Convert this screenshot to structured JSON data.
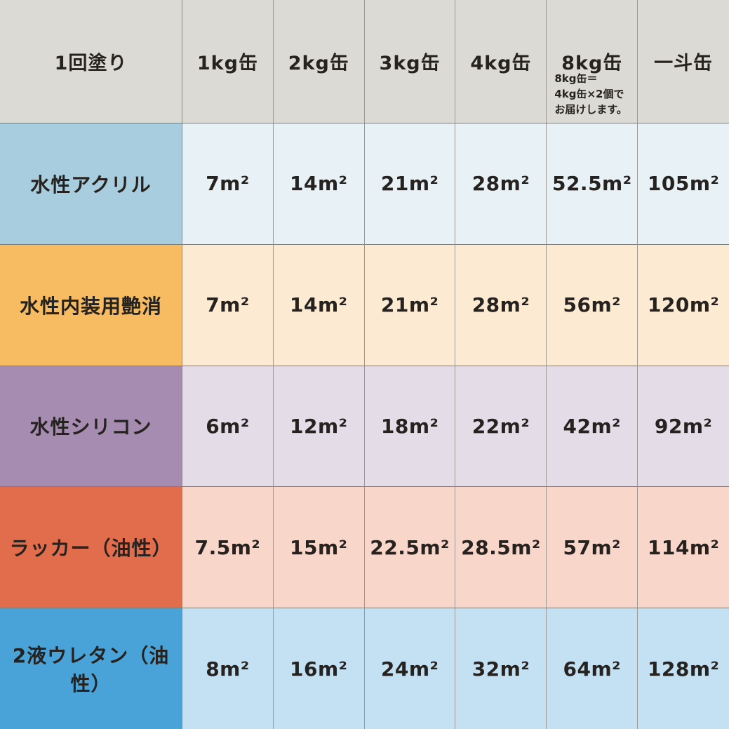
{
  "table": {
    "header": {
      "row_label": "1回塗り",
      "columns": [
        "1kg缶",
        "2kg缶",
        "3kg缶",
        "4kg缶",
        "8kg缶",
        "一斗缶"
      ],
      "note": "8kg缶＝\n4kg缶×2個で\nお届けします。"
    },
    "rows": [
      {
        "label": "水性アクリル",
        "label_color": "#a8cdde",
        "cell_color": "#e8f1f6",
        "values": [
          "7m²",
          "14m²",
          "21m²",
          "28m²",
          "52.5m²",
          "105m²"
        ]
      },
      {
        "label": "水性内装用艶消",
        "label_color": "#f7bb61",
        "cell_color": "#fcebd2",
        "values": [
          "7m²",
          "14m²",
          "21m²",
          "28m²",
          "56m²",
          "120m²"
        ]
      },
      {
        "label": "水性シリコン",
        "label_color": "#a68cb0",
        "cell_color": "#e4dde8",
        "values": [
          "6m²",
          "12m²",
          "18m²",
          "22m²",
          "42m²",
          "92m²"
        ]
      },
      {
        "label": "ラッカー（油性）",
        "label_color": "#e26d4c",
        "cell_color": "#f8d6ca",
        "values": [
          "7.5m²",
          "15m²",
          "22.5m²",
          "28.5m²",
          "57m²",
          "114m²"
        ]
      },
      {
        "label": "2液ウレタン（油性）",
        "label_color": "#49a3d9",
        "cell_color": "#c3e1f2",
        "values": [
          "8m²",
          "16m²",
          "24m²",
          "32m²",
          "64m²",
          "128m²"
        ]
      }
    ],
    "colors": {
      "header_bg": "#dcdad5",
      "text": "#262220",
      "grid_vertical": "#9d9a95",
      "grid_horizontal": "#7d7d7b"
    }
  },
  "chart_data": {
    "type": "table",
    "title": "1回塗り",
    "columns": [
      "1kg缶",
      "2kg缶",
      "3kg缶",
      "4kg缶",
      "8kg缶",
      "一斗缶"
    ],
    "unit": "m²",
    "rows": [
      {
        "name": "水性アクリル",
        "values": [
          7,
          14,
          21,
          28,
          52.5,
          105
        ]
      },
      {
        "name": "水性内装用艶消",
        "values": [
          7,
          14,
          21,
          28,
          56,
          120
        ]
      },
      {
        "name": "水性シリコン",
        "values": [
          6,
          12,
          18,
          22,
          42,
          92
        ]
      },
      {
        "name": "ラッカー（油性）",
        "values": [
          7.5,
          15,
          22.5,
          28.5,
          57,
          114
        ]
      },
      {
        "name": "2液ウレタン（油性）",
        "values": [
          8,
          16,
          24,
          32,
          64,
          128
        ]
      }
    ],
    "note": "8kg缶＝4kg缶×2個でお届けします。"
  }
}
